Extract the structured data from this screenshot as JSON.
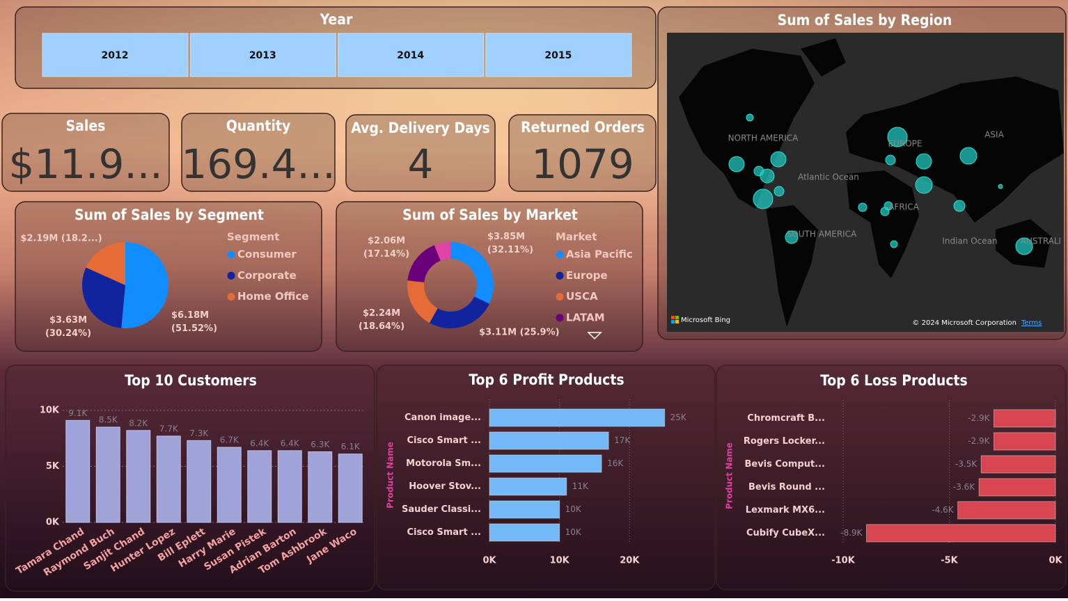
{
  "slicer": {
    "title": "Year",
    "items": [
      "2012",
      "2013",
      "2014",
      "2015"
    ]
  },
  "kpis": [
    {
      "title": "Sales",
      "value": "$11.9..."
    },
    {
      "title": "Quantity",
      "value": "169.4..."
    },
    {
      "title": "Avg. Delivery Days",
      "value": "4"
    },
    {
      "title": "Returned Orders",
      "value": "1079"
    }
  ],
  "map": {
    "title": "Sum of Sales by Region",
    "labels": [
      "NORTH AMERICA",
      "EUROPE",
      "ASIA",
      "Atlantic Ocean",
      "AFRICA",
      "SOUTH AMERICA",
      "Indian Ocean",
      "AUSTRALI"
    ],
    "credits": [
      "Microsoft Bing",
      "© 2024 Microsoft Corporation",
      "Terms"
    ]
  },
  "chart_data": [
    {
      "type": "pie",
      "title": "Sum of Sales by Segment",
      "legend_title": "Segment",
      "categories": [
        "Consumer",
        "Corporate",
        "Home Office"
      ],
      "values": [
        6.18,
        3.63,
        2.19
      ],
      "value_labels": [
        "$6.18M (51.52%)",
        "$3.63M (30.24%)",
        "$2.19M (18.2...)"
      ],
      "colors": [
        "#118DFF",
        "#12239E",
        "#E66C37"
      ]
    },
    {
      "type": "donut",
      "title": "Sum of Sales by Market",
      "legend_title": "Market",
      "categories": [
        "Asia Pacific",
        "Europe",
        "USCA",
        "LATAM",
        null
      ],
      "values": [
        3.85,
        3.11,
        2.24,
        2.06,
        0.73
      ],
      "value_labels": [
        "$3.85M (32.11%)",
        "$3.11M (25.9%)",
        "$2.24M (18.64%)",
        "$2.06M (17.14%)",
        null
      ],
      "colors": [
        "#118DFF",
        "#12239E",
        "#E66C37",
        "#6B007B",
        "#E044A7"
      ]
    },
    {
      "type": "bar",
      "title": "Top 10 Customers",
      "categories": [
        "Tamara Chand",
        "Raymond Buch",
        "Sanjit Chand",
        "Hunter Lopez",
        "Bill Eplett",
        "Harry Marie",
        "Susan Pistek",
        "Adrian Barton",
        "Tom Ashbrook",
        "Jane Waco"
      ],
      "values": [
        9100,
        8500,
        8200,
        7700,
        7300,
        6700,
        6400,
        6400,
        6300,
        6100
      ],
      "value_labels": [
        "9.1K",
        "8.5K",
        "8.2K",
        "7.7K",
        "7.3K",
        "6.7K",
        "6.4K",
        "6.4K",
        "6.3K",
        "6.1K"
      ],
      "color": "#A0A3D8",
      "ylim": [
        0,
        10300
      ],
      "yticks": [
        {
          "value": 0,
          "label": "0K"
        },
        {
          "value": 5000,
          "label": "5K"
        },
        {
          "value": 10000,
          "label": "10K"
        }
      ],
      "grid": true
    },
    {
      "type": "bar",
      "horizontal": true,
      "title": "Top 6 Profit Products",
      "ylabel": "Product Name",
      "categories": [
        "Canon image...",
        "Cisco Smart ...",
        "Motorola Sm...",
        "Hoover Stov...",
        "Sauder Classi...",
        "Cisco Smart ..."
      ],
      "values": [
        25000,
        17000,
        16000,
        11000,
        10000,
        10000
      ],
      "value_labels": [
        "25K",
        "17K",
        "16K",
        "11K",
        "10K",
        "10K"
      ],
      "color": "#73B9F7",
      "xlim": [
        0,
        30000
      ],
      "xticks": [
        {
          "value": 0,
          "label": "0K"
        },
        {
          "value": 10000,
          "label": "10K"
        },
        {
          "value": 20000,
          "label": "20K"
        }
      ],
      "grid": true
    },
    {
      "type": "bar",
      "horizontal": true,
      "title": "Top 6 Loss Products",
      "ylabel": "Product Name",
      "categories": [
        "Chromcraft B...",
        "Rogers Locker...",
        "Bevis Comput...",
        "Bevis Round ...",
        "Lexmark MX6...",
        "Cubify CubeX..."
      ],
      "values": [
        -2900,
        -2900,
        -3500,
        -3600,
        -4600,
        -8900
      ],
      "value_labels": [
        "-2.9K",
        "-2.9K",
        "-3.5K",
        "-3.6K",
        "-4.6K",
        "-8.9K"
      ],
      "color": "#D64550",
      "xlim": [
        -10000,
        0
      ],
      "xticks": [
        {
          "value": -10000,
          "label": "-10K"
        },
        {
          "value": -5000,
          "label": "-5K"
        },
        {
          "value": 0,
          "label": "0K"
        }
      ],
      "grid": true
    }
  ]
}
